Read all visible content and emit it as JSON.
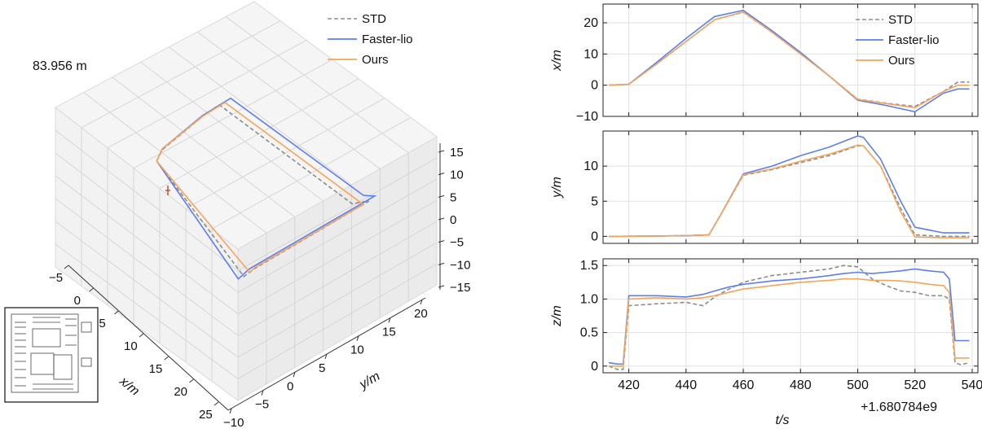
{
  "chart_data": [
    {
      "type": "line",
      "subtype": "3d-trajectory",
      "annotation": "83.956 m",
      "xlabel": "x/m",
      "ylabel": "y/m",
      "zlabel": "",
      "x_ticks": [
        "−5",
        "0",
        "5",
        "10",
        "15",
        "20",
        "25"
      ],
      "y_ticks": [
        "−10",
        "−5",
        "0",
        "5",
        "10",
        "15",
        "20"
      ],
      "z_ticks": [
        "15",
        "10",
        "5",
        "0",
        "−5",
        "−10",
        "−15"
      ],
      "xlim": [
        -7,
        26
      ],
      "ylim": [
        -11,
        24
      ],
      "zlim": [
        -17,
        17
      ],
      "legend": [
        "STD",
        "Faster-lio",
        "Ours"
      ],
      "legend_position": "top-right",
      "grid": true,
      "series": [
        {
          "name": "STD",
          "x": [
            0,
            0,
            -1,
            -1,
            23,
            24,
            24,
            24,
            0
          ],
          "y": [
            0,
            1,
            9,
            12,
            12,
            14,
            -6,
            -8,
            0
          ],
          "z": [
            0,
            0.9,
            1.2,
            1.4,
            1.2,
            1.2,
            1.1,
            0.9,
            0
          ]
        },
        {
          "name": "Faster-lio",
          "x": [
            0,
            0,
            -1,
            -1,
            23,
            24,
            24,
            24,
            0
          ],
          "y": [
            0,
            1,
            9,
            14,
            14,
            15,
            -7,
            -9,
            0
          ],
          "z": [
            0,
            1.0,
            1.3,
            1.4,
            1.4,
            1.4,
            1.4,
            1.0,
            0
          ]
        },
        {
          "name": "Ours",
          "x": [
            0,
            0,
            -1,
            -1,
            23,
            24,
            24,
            24,
            0
          ],
          "y": [
            0,
            1,
            9,
            13,
            13,
            13,
            -6,
            -7,
            0
          ],
          "z": [
            0,
            1.0,
            1.2,
            1.3,
            1.2,
            1.2,
            1.2,
            1.0,
            0
          ]
        }
      ]
    },
    {
      "type": "line",
      "layout": "3 stacked subplots sharing x",
      "xlabel": "t/s",
      "x_offset_label": "+1.680784e9",
      "xlim": [
        411,
        542
      ],
      "x_ticks": [
        420,
        440,
        460,
        480,
        500,
        520,
        540
      ],
      "x_tick_labels": [
        "420",
        "440",
        "460",
        "480",
        "500",
        "520",
        "540"
      ],
      "legend": [
        "STD",
        "Faster-lio",
        "Ours"
      ],
      "legend_position": "top-right of first subplot",
      "grid": true,
      "colors": {
        "STD": "#8c8c8c",
        "Faster-lio": "#5b7ef0",
        "Ours": "#f5a55a"
      },
      "subplots": [
        {
          "ylabel": "x/m",
          "ylim": [
            -10,
            26
          ],
          "y_ticks": [
            -10,
            0,
            10,
            20
          ],
          "y_tick_labels": [
            "−10",
            "0",
            "10",
            "20"
          ],
          "series": [
            {
              "name": "STD",
              "x": [
                413,
                420,
                430,
                440,
                450,
                460,
                470,
                480,
                490,
                500,
                510,
                520,
                530,
                535,
                539
              ],
              "values": [
                0,
                0.3,
                7,
                14,
                21,
                23.4,
                17,
                10,
                3,
                -4.5,
                -5.8,
                -6.8,
                -2,
                1,
                1
              ]
            },
            {
              "name": "Faster-lio",
              "x": [
                413,
                420,
                430,
                440,
                450,
                460,
                470,
                480,
                490,
                500,
                510,
                520,
                530,
                535,
                539
              ],
              "values": [
                0,
                0.3,
                7.5,
                15,
                22,
                24,
                17.5,
                10.5,
                3,
                -4.8,
                -6.5,
                -8.5,
                -2.5,
                -1.2,
                -1.2
              ]
            },
            {
              "name": "Ours",
              "x": [
                413,
                420,
                430,
                440,
                450,
                460,
                470,
                480,
                490,
                500,
                510,
                520,
                530,
                535,
                539
              ],
              "values": [
                0,
                0.3,
                7,
                14,
                21,
                23.5,
                17,
                10,
                3,
                -4.6,
                -5.9,
                -7.2,
                -2,
                0,
                0
              ]
            }
          ]
        },
        {
          "ylabel": "y/m",
          "ylim": [
            -1,
            15
          ],
          "y_ticks": [
            0,
            5,
            10
          ],
          "y_tick_labels": [
            "0",
            "5",
            "10"
          ],
          "series": [
            {
              "name": "STD",
              "x": [
                413,
                430,
                440,
                448,
                452,
                460,
                470,
                480,
                490,
                500,
                502,
                508,
                515,
                520,
                530,
                539
              ],
              "values": [
                0,
                0.05,
                0.1,
                0.2,
                3,
                8.7,
                9.5,
                10.5,
                11.5,
                12.9,
                12.9,
                10,
                4,
                0.2,
                0,
                0
              ]
            },
            {
              "name": "Faster-lio",
              "x": [
                413,
                430,
                440,
                448,
                452,
                460,
                470,
                480,
                490,
                500,
                502,
                508,
                515,
                520,
                530,
                539
              ],
              "values": [
                0,
                0.05,
                0.1,
                0.2,
                3,
                8.9,
                10,
                11.5,
                12.7,
                14.3,
                14.1,
                11,
                5,
                1.3,
                0.5,
                0.5
              ]
            },
            {
              "name": "Ours",
              "x": [
                413,
                430,
                440,
                448,
                452,
                460,
                470,
                480,
                490,
                500,
                502,
                508,
                515,
                520,
                530,
                539
              ],
              "values": [
                0,
                0.05,
                0.1,
                0.2,
                3,
                8.8,
                9.6,
                10.7,
                11.7,
                13.0,
                12.9,
                10,
                3.5,
                -0.1,
                -0.2,
                -0.2
              ]
            }
          ]
        },
        {
          "ylabel": "z/m",
          "ylim": [
            -0.1,
            1.6
          ],
          "y_ticks": [
            0,
            0.5,
            1.0,
            1.5
          ],
          "y_tick_labels": [
            "0",
            "0.5",
            "1.0",
            "1.5"
          ],
          "series": [
            {
              "name": "STD",
              "x": [
                413,
                416,
                418,
                420,
                430,
                440,
                446,
                450,
                455,
                460,
                470,
                480,
                490,
                495,
                500,
                505,
                510,
                515,
                520,
                525,
                530,
                532,
                534,
                536,
                539
              ],
              "values": [
                0,
                -0.05,
                -0.05,
                0.9,
                0.93,
                0.95,
                0.9,
                1.03,
                1.15,
                1.25,
                1.35,
                1.4,
                1.45,
                1.5,
                1.48,
                1.3,
                1.2,
                1.12,
                1.1,
                1.05,
                1.05,
                1.0,
                0.05,
                0.02,
                0.05
              ]
            },
            {
              "name": "Faster-lio",
              "x": [
                413,
                416,
                418,
                420,
                430,
                440,
                446,
                450,
                455,
                460,
                470,
                480,
                490,
                495,
                500,
                505,
                510,
                515,
                520,
                525,
                530,
                532,
                534,
                536,
                539
              ],
              "values": [
                0.05,
                0.03,
                0.03,
                1.05,
                1.05,
                1.03,
                1.07,
                1.12,
                1.18,
                1.22,
                1.27,
                1.3,
                1.35,
                1.38,
                1.4,
                1.38,
                1.4,
                1.42,
                1.45,
                1.42,
                1.4,
                1.3,
                0.38,
                0.38,
                0.38
              ]
            },
            {
              "name": "Ours",
              "x": [
                413,
                416,
                418,
                420,
                430,
                440,
                446,
                450,
                455,
                460,
                470,
                480,
                490,
                495,
                500,
                505,
                510,
                515,
                520,
                525,
                530,
                532,
                534,
                536,
                539
              ],
              "values": [
                0,
                0,
                0,
                1.0,
                1.02,
                1.0,
                1.02,
                1.05,
                1.1,
                1.15,
                1.2,
                1.25,
                1.28,
                1.3,
                1.3,
                1.28,
                1.28,
                1.27,
                1.25,
                1.22,
                1.2,
                1.1,
                0.12,
                0.12,
                0.12
              ]
            }
          ]
        }
      ]
    }
  ]
}
